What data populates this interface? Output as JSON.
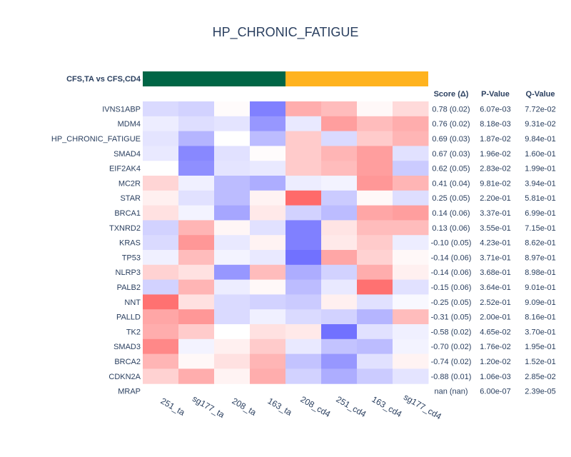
{
  "chart_data": {
    "type": "heatmap",
    "title": "HP_CHRONIC_FATIGUE",
    "comparison_label": "CFS,TA vs CFS,CD4",
    "group_colors": [
      "#006646",
      "#FFB31F"
    ],
    "group_spans": [
      [
        0,
        4
      ],
      [
        4,
        8
      ]
    ],
    "columns": [
      "251_ta",
      "sg177_ta",
      "208_ta",
      "163_ta",
      "208_cd4",
      "251_cd4",
      "163_cd4",
      "sg177_cd4"
    ],
    "table_headers": {
      "score": "Score (Δ)",
      "pvalue": "P-Value",
      "qvalue": "Q-Value"
    },
    "colorscale": {
      "negative": "#6A6AFF",
      "zero": "#FFFFFF",
      "positive": "#FF6A6A",
      "range": [
        -1,
        1
      ]
    },
    "rows": [
      {
        "label": "IVNS1ABP",
        "score": "0.78 (0.02)",
        "pvalue": "6.07e-03",
        "qvalue": "7.72e-02",
        "values": [
          -0.25,
          -0.3,
          0.03,
          -0.85,
          0.55,
          0.45,
          0.05,
          0.25
        ]
      },
      {
        "label": "MDM4",
        "score": "0.76 (0.02)",
        "pvalue": "8.18e-03",
        "qvalue": "9.31e-02",
        "values": [
          -0.12,
          -0.22,
          -0.18,
          -0.7,
          -0.15,
          0.65,
          0.45,
          0.55
        ]
      },
      {
        "label": "HP_CHRONIC_FATIGUE",
        "score": "0.69 (0.03)",
        "pvalue": "1.87e-02",
        "qvalue": "9.84e-01",
        "values": [
          -0.18,
          -0.5,
          0.0,
          -0.45,
          0.35,
          -0.25,
          0.35,
          0.5
        ]
      },
      {
        "label": "SMAD4",
        "score": "0.67 (0.03)",
        "pvalue": "1.96e-02",
        "qvalue": "1.60e-01",
        "values": [
          -0.15,
          -0.8,
          -0.2,
          0.02,
          0.35,
          0.5,
          0.65,
          -0.2
        ]
      },
      {
        "label": "EIF2AK4",
        "score": "0.62 (0.05)",
        "pvalue": "2.83e-02",
        "qvalue": "1.99e-01",
        "values": [
          0.0,
          -0.75,
          -0.18,
          -0.15,
          0.35,
          0.45,
          0.65,
          -0.35
        ]
      },
      {
        "label": "MC2R",
        "score": "0.41 (0.04)",
        "pvalue": "9.81e-02",
        "qvalue": "3.94e-01",
        "values": [
          0.28,
          -0.1,
          -0.45,
          -0.55,
          -0.12,
          -0.08,
          0.7,
          0.5
        ]
      },
      {
        "label": "STAR",
        "score": "0.25 (0.05)",
        "pvalue": "2.20e-01",
        "qvalue": "5.81e-01",
        "values": [
          0.1,
          -0.2,
          -0.45,
          0.08,
          1.0,
          -0.35,
          0.05,
          -0.22
        ]
      },
      {
        "label": "BRCA1",
        "score": "0.14 (0.06)",
        "pvalue": "3.37e-01",
        "qvalue": "6.99e-01",
        "values": [
          0.2,
          -0.08,
          -0.6,
          0.15,
          -0.3,
          -0.45,
          0.6,
          0.65
        ]
      },
      {
        "label": "TXNRD2",
        "score": "0.13 (0.06)",
        "pvalue": "3.55e-01",
        "qvalue": "7.15e-01",
        "values": [
          -0.3,
          0.5,
          0.06,
          -0.2,
          -0.85,
          0.18,
          0.45,
          0.45
        ]
      },
      {
        "label": "KRAS",
        "score": "-0.10 (0.05)",
        "pvalue": "4.23e-01",
        "qvalue": "8.62e-01",
        "values": [
          -0.25,
          0.7,
          -0.15,
          0.08,
          -0.85,
          0.15,
          0.35,
          -0.12
        ]
      },
      {
        "label": "TP53",
        "score": "-0.14 (0.06)",
        "pvalue": "3.71e-01",
        "qvalue": "8.97e-01",
        "values": [
          -0.1,
          0.45,
          -0.08,
          -0.15,
          -0.95,
          0.6,
          0.3,
          0.05
        ]
      },
      {
        "label": "NLRP3",
        "score": "-0.14 (0.06)",
        "pvalue": "3.68e-01",
        "qvalue": "8.98e-01",
        "values": [
          0.3,
          0.2,
          -0.7,
          0.45,
          -0.55,
          -0.3,
          0.55,
          0.1
        ]
      },
      {
        "label": "PALB2",
        "score": "-0.15 (0.06)",
        "pvalue": "3.64e-01",
        "qvalue": "9.01e-01",
        "values": [
          -0.3,
          0.5,
          -0.12,
          0.05,
          -0.45,
          -0.15,
          0.95,
          -0.2
        ]
      },
      {
        "label": "NNT",
        "score": "-0.25 (0.05)",
        "pvalue": "2.52e-01",
        "qvalue": "9.09e-01",
        "values": [
          0.95,
          0.2,
          -0.25,
          -0.3,
          -0.35,
          0.1,
          -0.2,
          -0.05
        ]
      },
      {
        "label": "PALLD",
        "score": "-0.31 (0.05)",
        "pvalue": "2.00e-01",
        "qvalue": "8.16e-01",
        "values": [
          0.6,
          0.7,
          -0.25,
          -0.1,
          -0.25,
          -0.3,
          -0.5,
          0.45
        ]
      },
      {
        "label": "TK2",
        "score": "-0.58 (0.02)",
        "pvalue": "4.65e-02",
        "qvalue": "3.70e-01",
        "values": [
          0.55,
          0.35,
          0.0,
          0.2,
          0.15,
          -0.95,
          -0.2,
          -0.1
        ]
      },
      {
        "label": "SMAD3",
        "score": "-0.70 (0.02)",
        "pvalue": "1.76e-02",
        "qvalue": "1.95e-01",
        "values": [
          0.8,
          -0.08,
          0.1,
          0.35,
          -0.15,
          -0.4,
          -0.45,
          -0.08
        ]
      },
      {
        "label": "BRCA2",
        "score": "-0.74 (0.02)",
        "pvalue": "1.20e-02",
        "qvalue": "1.52e-01",
        "values": [
          0.5,
          0.05,
          0.2,
          0.5,
          -0.4,
          -0.7,
          -0.2,
          0.08
        ]
      },
      {
        "label": "CDKN2A",
        "score": "-0.88 (0.01)",
        "pvalue": "1.06e-03",
        "qvalue": "2.85e-02",
        "values": [
          0.3,
          0.55,
          0.08,
          0.55,
          -0.3,
          -0.55,
          -0.35,
          -0.18
        ]
      },
      {
        "label": "MRAP",
        "score": "nan (nan)",
        "pvalue": "6.00e-07",
        "qvalue": "2.39e-05",
        "values": [
          null,
          null,
          null,
          null,
          null,
          null,
          null,
          null
        ]
      }
    ]
  }
}
